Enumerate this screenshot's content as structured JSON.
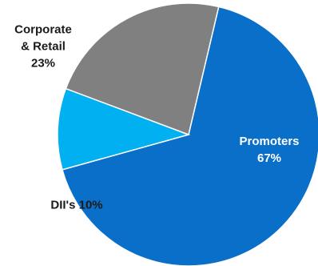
{
  "chart_data": {
    "type": "pie",
    "slices": [
      {
        "label_line1": "Promoters",
        "label_line2": "",
        "value_text": "67%",
        "value": 67,
        "color": "#0a6fc8"
      },
      {
        "label_line1": "DII's 10%",
        "label_line2": "",
        "value_text": "",
        "value": 10,
        "color": "#00b0f0"
      },
      {
        "label_line1": "Corporate",
        "label_line2": "& Retail",
        "value_text": "23%",
        "value": 23,
        "color": "#808080"
      }
    ],
    "start_angle_deg": 13.3,
    "direction": "clockwise"
  }
}
